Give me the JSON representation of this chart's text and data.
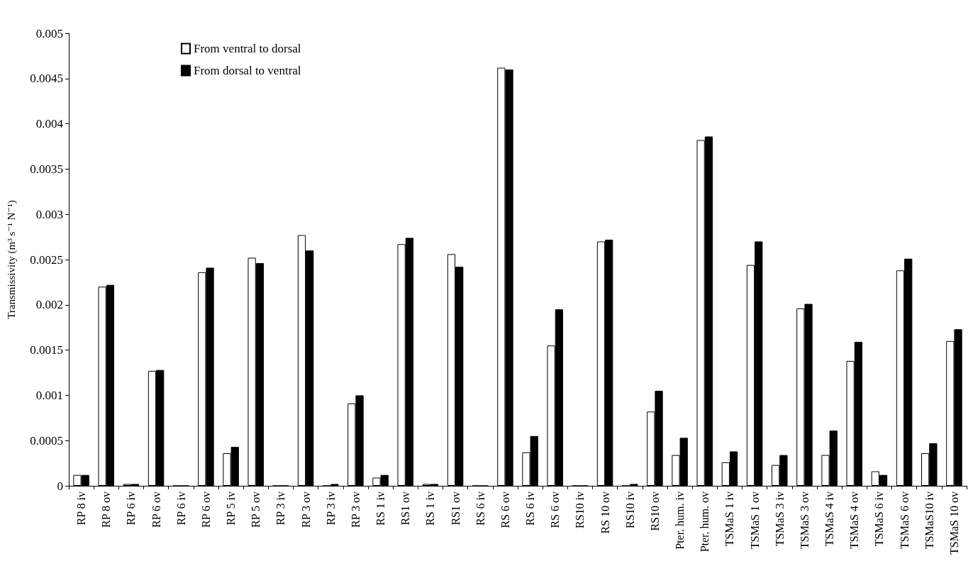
{
  "chart_data": {
    "type": "bar",
    "ylabel": "Transmissivity (m³ s⁻¹ N⁻¹)",
    "categories": [
      "RP 8 iv",
      "RP 8 ov",
      "RP 6 iv",
      "RP 6 ov",
      "RP 6 iv",
      "RP 6 ov",
      "RP 5 iv",
      "RP 5 ov",
      "RP 3 iv",
      "RP 3 ov",
      "RP 3 iv",
      "RP 3 ov",
      "RS 1 iv",
      "RS1 ov",
      "RS 1 iv",
      "RS1 ov",
      "RS 6 iv",
      "RS 6 ov",
      "RS 6 iv",
      "RS 6 ov",
      "RS10 iv",
      "RS 10 ov",
      "RS10 iv",
      "RS10 ov",
      "Pter. hum. iv",
      "Pter. hum. ov",
      "TSMaS 1 iv",
      "TSMaS 1 ov",
      "TSMaS 3 iv",
      "TSMaS 3 ov",
      "TSMaS 4 iv",
      "TSMaS 4 ov",
      "TSMaS 6 iv",
      "TSMaS 6 ov",
      "TSMaS10 iv",
      "TSMaS 10 ov"
    ],
    "series": [
      {
        "name": "From ventral to dorsal",
        "color": "#ffffff",
        "values": [
          0.00012,
          0.0022,
          2e-05,
          0.00127,
          0,
          0.00236,
          0.00036,
          0.00252,
          0,
          0.00277,
          0,
          0.00091,
          9e-05,
          0.00267,
          2e-05,
          0.00256,
          0,
          0.00462,
          0.00037,
          0.00155,
          0,
          0.0027,
          0,
          0.00082,
          0.00034,
          0.00382,
          0.00026,
          0.00244,
          0.00023,
          0.00196,
          0.00034,
          0.00138,
          0.00016,
          0.00238,
          0.00036,
          0.0016
        ]
      },
      {
        "name": "From dorsal to ventral",
        "color": "#000000",
        "values": [
          0.00012,
          0.00222,
          2e-05,
          0.00128,
          0,
          0.00241,
          0.00043,
          0.00246,
          0,
          0.0026,
          2e-05,
          0.001,
          0.00012,
          0.00274,
          2e-05,
          0.00242,
          0,
          0.0046,
          0.00055,
          0.00195,
          0,
          0.00272,
          2e-05,
          0.00105,
          0.00053,
          0.00386,
          0.00038,
          0.0027,
          0.00034,
          0.00201,
          0.00061,
          0.00159,
          0.00012,
          0.00251,
          0.00047,
          0.00173
        ]
      }
    ],
    "ylim": [
      0,
      0.005
    ],
    "yticks": [
      0,
      0.0005,
      0.001,
      0.0015,
      0.002,
      0.0025,
      0.003,
      0.0035,
      0.004,
      0.0045,
      0.005
    ],
    "grid": false,
    "legend": "top left"
  }
}
